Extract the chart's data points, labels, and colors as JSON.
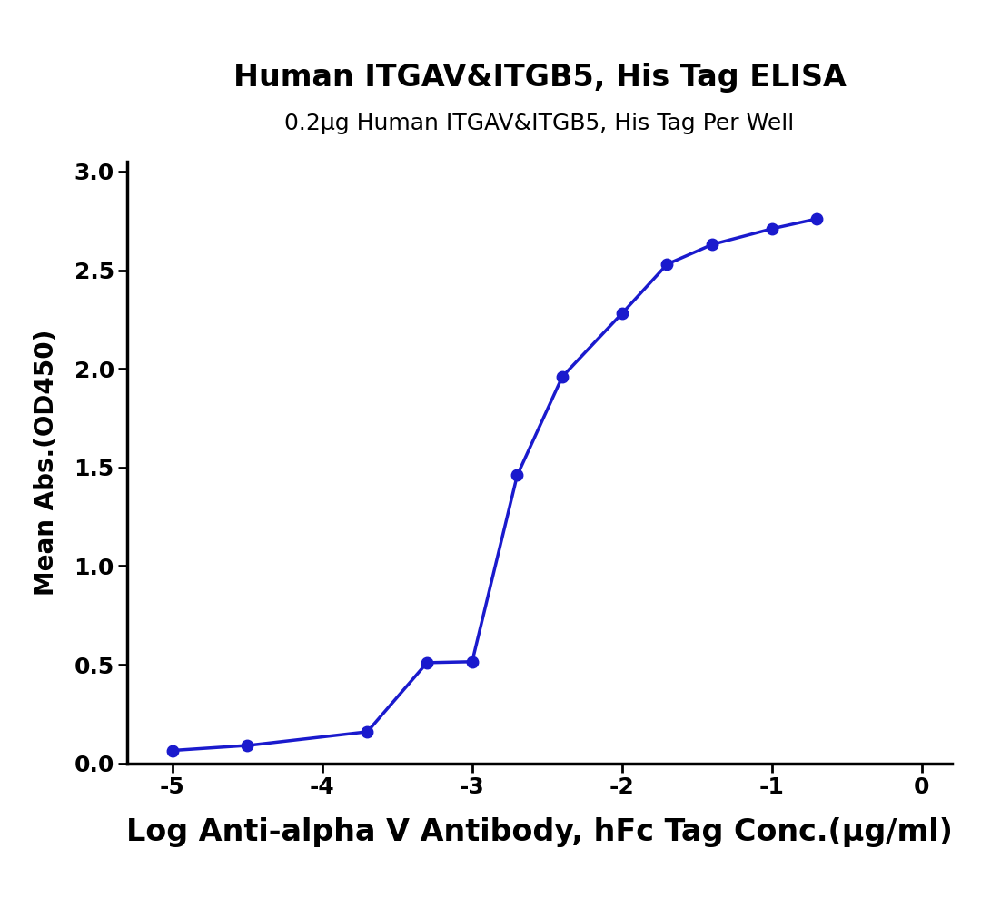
{
  "title": "Human ITGAV&ITGB5, His Tag ELISA",
  "subtitle": "0.2μg Human ITGAV&ITGB5, His Tag Per Well",
  "xlabel": "Log Anti-alpha V Antibody, hFc Tag Conc.(μg/ml)",
  "ylabel": "Mean Abs.(OD450)",
  "x_data": [
    -5.0,
    -4.5,
    -3.699,
    -3.301,
    -3.0,
    -2.699,
    -2.398,
    -2.0,
    -1.699,
    -1.398,
    -1.0,
    -0.699
  ],
  "y_data": [
    0.065,
    0.09,
    0.16,
    0.51,
    0.515,
    1.46,
    1.96,
    2.28,
    2.53,
    2.63,
    2.71,
    2.76
  ],
  "line_color": "#1a1acd",
  "marker_color": "#1a1acd",
  "marker_size": 9,
  "line_width": 2.5,
  "xlim": [
    -5.3,
    0.2
  ],
  "ylim": [
    0.0,
    3.05
  ],
  "xticks": [
    -5,
    -4,
    -3,
    -2,
    -1,
    0
  ],
  "yticks": [
    0.0,
    0.5,
    1.0,
    1.5,
    2.0,
    2.5,
    3.0
  ],
  "title_fontsize": 24,
  "subtitle_fontsize": 18,
  "xlabel_fontsize": 24,
  "ylabel_fontsize": 20,
  "tick_fontsize": 18,
  "background_color": "#ffffff"
}
